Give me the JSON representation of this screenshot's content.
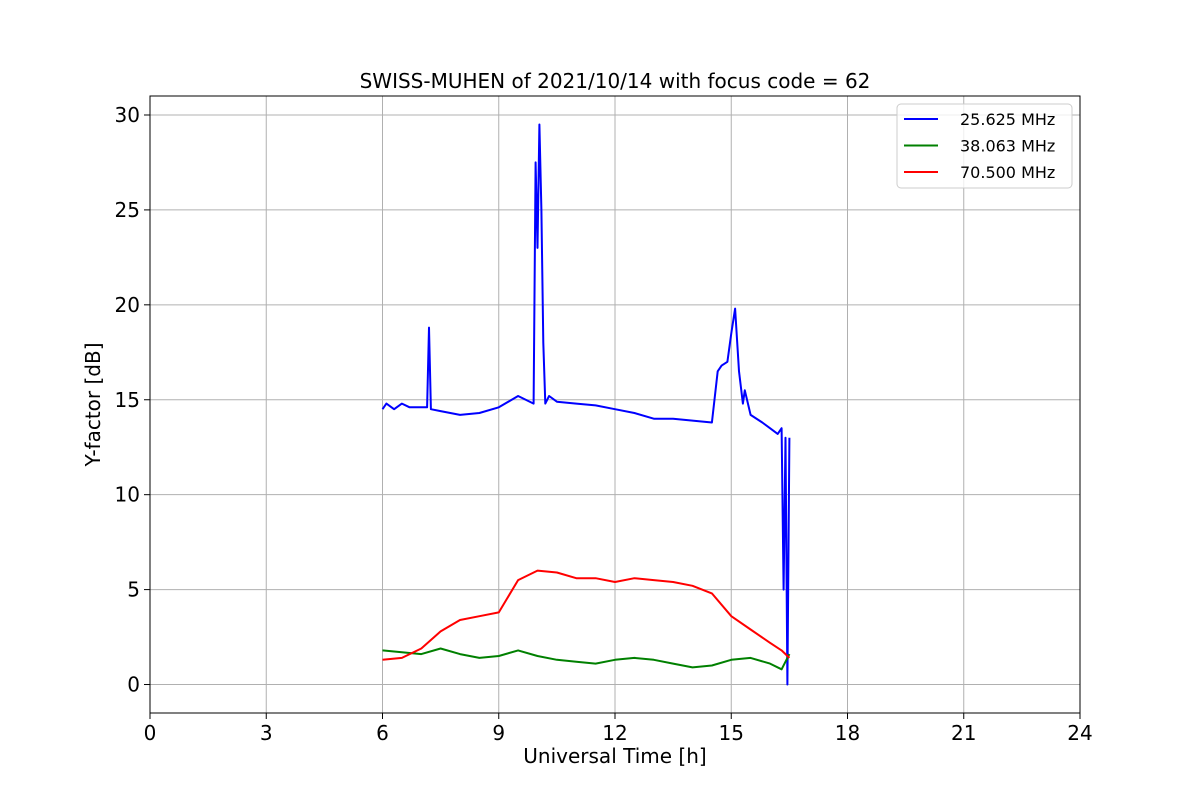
{
  "chart_data": {
    "type": "line",
    "title": "SWISS-MUHEN of 2021/10/14 with focus code = 62",
    "xlabel": "Universal Time [h]",
    "ylabel": "Y-factor [dB]",
    "xlim": [
      0,
      24
    ],
    "ylim": [
      -1.5,
      31
    ],
    "xticks": [
      0,
      3,
      6,
      9,
      12,
      15,
      18,
      21,
      24
    ],
    "yticks": [
      0,
      5,
      10,
      15,
      20,
      25,
      30
    ],
    "grid": true,
    "legend_position": "top-right",
    "series": [
      {
        "name": "25.625 MHz",
        "color": "#0000ff",
        "x": [
          6.0,
          6.1,
          6.3,
          6.5,
          6.7,
          7.0,
          7.15,
          7.2,
          7.25,
          7.5,
          8.0,
          8.5,
          9.0,
          9.5,
          9.9,
          9.95,
          10.0,
          10.05,
          10.1,
          10.15,
          10.2,
          10.3,
          10.5,
          11.0,
          11.5,
          12.0,
          12.5,
          13.0,
          13.5,
          14.0,
          14.5,
          14.65,
          14.75,
          14.9,
          15.0,
          15.1,
          15.2,
          15.3,
          15.35,
          15.5,
          15.8,
          16.0,
          16.2,
          16.3,
          16.35,
          16.4,
          16.45,
          16.5
        ],
        "y": [
          14.5,
          14.8,
          14.5,
          14.8,
          14.6,
          14.6,
          14.6,
          18.8,
          14.5,
          14.4,
          14.2,
          14.3,
          14.6,
          15.2,
          14.8,
          27.5,
          23.0,
          29.5,
          25.0,
          18.0,
          14.8,
          15.2,
          14.9,
          14.8,
          14.7,
          14.5,
          14.3,
          14.0,
          14.0,
          13.9,
          13.8,
          16.5,
          16.8,
          17.0,
          18.5,
          19.8,
          16.5,
          14.8,
          15.5,
          14.2,
          13.8,
          13.5,
          13.2,
          13.5,
          5.0,
          13.0,
          0.0,
          13.0
        ]
      },
      {
        "name": "38.063 MHz",
        "color": "#008000",
        "x": [
          6.0,
          6.5,
          7.0,
          7.5,
          8.0,
          8.5,
          9.0,
          9.5,
          10.0,
          10.5,
          11.0,
          11.5,
          12.0,
          12.5,
          13.0,
          13.5,
          14.0,
          14.5,
          15.0,
          15.5,
          16.0,
          16.3,
          16.5
        ],
        "y": [
          1.8,
          1.7,
          1.6,
          1.9,
          1.6,
          1.4,
          1.5,
          1.8,
          1.5,
          1.3,
          1.2,
          1.1,
          1.3,
          1.4,
          1.3,
          1.1,
          0.9,
          1.0,
          1.3,
          1.4,
          1.1,
          0.8,
          1.6
        ]
      },
      {
        "name": "70.500 MHz",
        "color": "#ff0000",
        "x": [
          6.0,
          6.5,
          7.0,
          7.5,
          8.0,
          8.5,
          9.0,
          9.5,
          10.0,
          10.5,
          11.0,
          11.5,
          12.0,
          12.5,
          13.0,
          13.5,
          14.0,
          14.5,
          15.0,
          15.5,
          16.0,
          16.3,
          16.5
        ],
        "y": [
          1.3,
          1.4,
          1.9,
          2.8,
          3.4,
          3.6,
          3.8,
          5.5,
          6.0,
          5.9,
          5.6,
          5.6,
          5.4,
          5.6,
          5.5,
          5.4,
          5.2,
          4.8,
          3.6,
          2.9,
          2.2,
          1.8,
          1.4
        ]
      }
    ]
  }
}
